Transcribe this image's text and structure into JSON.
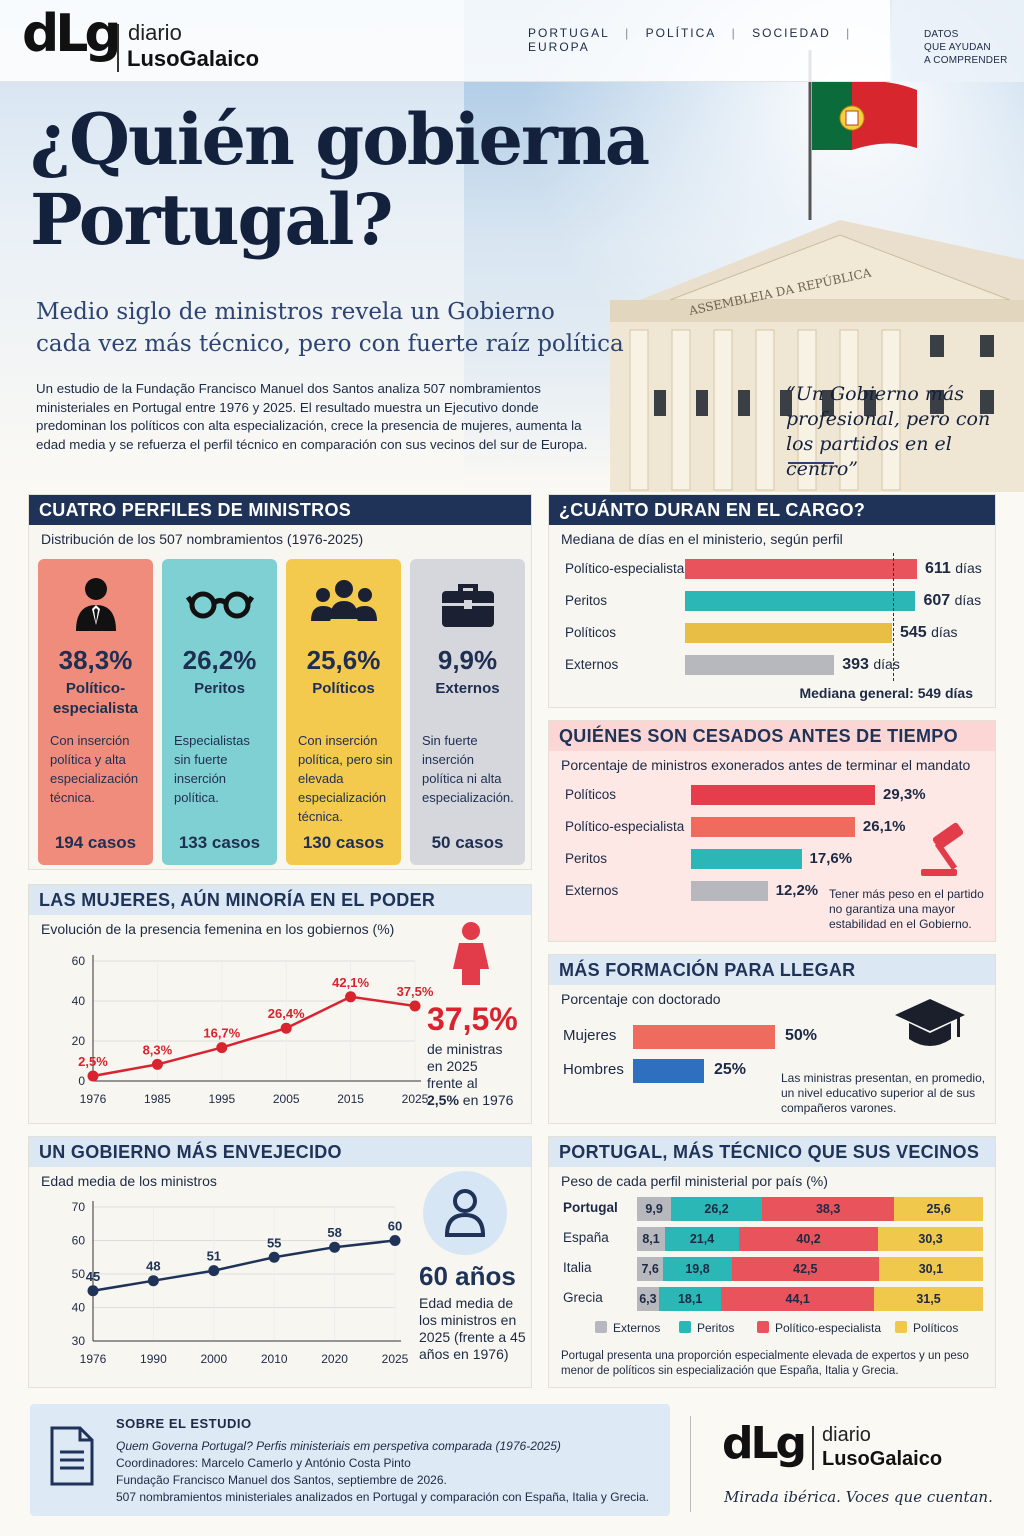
{
  "header": {
    "logo_mark": "dLg",
    "logo_top": "diario",
    "logo_bottom": "LusoGalaico",
    "nav": [
      "PORTUGAL",
      "POLÍTICA",
      "SOCIEDAD",
      "EUROPA"
    ],
    "nav_sep": "|",
    "tagline_lines": [
      "DATOS",
      "QUE AYUDAN",
      "A COMPRENDER"
    ]
  },
  "hero": {
    "title_line1": "¿Quién gobierna",
    "title_line2": "Portugal?",
    "subtitle_line1": "Medio siglo de ministros revela un Gobierno",
    "subtitle_line2": "cada vez más técnico, pero con fuerte raíz política",
    "intro": "Un estudio de la Fundação Francisco Manuel dos Santos analiza 507 nombramientos ministeriales en Portugal entre 1976 y 2025. El resultado muestra un Ejecutivo donde predominan los políticos con alta especialización, crece la presencia de mujeres, aumenta la edad media y se refuerza el perfil técnico en comparación con sus vecinos del sur de Europa.",
    "quote": "“Un Gobierno más profesional, pero con los partidos en el centro”",
    "building_inscription": "ASSEMBLEIA DA REPÚBLICA",
    "flag_colors": {
      "green": "#0b6b3a",
      "red": "#d7262e"
    }
  },
  "profiles": {
    "heading": "CUATRO PERFILES DE MINISTROS",
    "subheading": "Distribución de los 507 nombramientos (1976-2025)",
    "cards": [
      {
        "pct": "38,3%",
        "name": "Político-especialista",
        "desc": "Con inserción política y alta especialización técnica.",
        "cases": "194 casos",
        "icon": "person-tie-icon",
        "color": "#f08c7c"
      },
      {
        "pct": "26,2%",
        "name": "Peritos",
        "desc": "Especialistas sin fuerte inserción política.",
        "cases": "133 casos",
        "icon": "glasses-icon",
        "color": "#7fd0d3"
      },
      {
        "pct": "25,6%",
        "name": "Políticos",
        "desc": "Con inserción política, pero sin elevada especialización técnica.",
        "cases": "130 casos",
        "icon": "group-icon",
        "color": "#f3c94e"
      },
      {
        "pct": "9,9%",
        "name": "Externos",
        "desc": "Sin fuerte inserción política ni alta especialización.",
        "cases": "50 casos",
        "icon": "briefcase-icon",
        "color": "#d6d7dc"
      }
    ]
  },
  "tenure": {
    "heading": "¿CUÁNTO DURAN EN EL CARGO?",
    "subheading": "Mediana de días en el ministerio, según perfil",
    "unit": "días",
    "median_label": "Mediana general: 549 días"
  },
  "dismissed": {
    "heading": "QUIÉNES SON CESADOS ANTES DE TIEMPO",
    "subheading": "Porcentaje de ministros exonerados antes de terminar el mandato",
    "note": "Tener más peso en el partido no garantiza una mayor estabilidad en el Gobierno."
  },
  "women": {
    "heading": "LAS MUJERES, AÚN MINORÍA EN EL PODER",
    "subheading": "Evolución de la presencia femenina en los gobiernos (%)",
    "big": "37,5%",
    "text1": "de ministras",
    "text2": "en 2025",
    "text3": "frente al",
    "text4_bold": "2,5%",
    "text4": " en 1976"
  },
  "education": {
    "heading": "MÁS FORMACIÓN PARA LLEGAR",
    "subheading": "Porcentaje con doctorado",
    "note": "Las ministras presentan, en promedio, un nivel educativo superior al de sus compañeros varones."
  },
  "age": {
    "heading": "UN GOBIERNO MÁS ENVEJECIDO",
    "subheading": "Edad media de los ministros",
    "big": "60 años",
    "text": "Edad media de los ministros en 2025 (frente a 45 años en 1976)"
  },
  "neighbors": {
    "heading": "PORTUGAL, MÁS TÉCNICO QUE SUS VECINOS",
    "subheading": "Peso de cada perfil ministerial por país (%)",
    "note": "Portugal presenta una proporción especialmente elevada de expertos y un peso menor de políticos sin especialización que España, Italia y Grecia."
  },
  "footer": {
    "heading": "SOBRE EL ESTUDIO",
    "line1": "Quem Governa Portugal? Perfis ministeriais em perspetiva comparada (1976-2025)",
    "line2": "Coordinadores: Marcelo Camerlo y António Costa Pinto",
    "line3": "Fundação Francisco Manuel dos Santos, septiembre de 2026.",
    "line4": "507 nombramientos ministeriales analizados en Portugal y comparación con España, Italia y Grecia.",
    "motto": "Mirada ibérica. Voces que cuentan."
  },
  "chart_data": [
    {
      "type": "bar",
      "title": "¿CUÁNTO DURAN EN EL CARGO?",
      "subtitle": "Mediana de días en el ministerio, según perfil",
      "categories": [
        "Político-especialista",
        "Peritos",
        "Políticos",
        "Externos"
      ],
      "values": [
        611,
        607,
        545,
        393
      ],
      "colors": [
        "#e9545c",
        "#2bb7b5",
        "#e8be45",
        "#b7b8bd"
      ],
      "reference_line": 549,
      "orientation": "horizontal"
    },
    {
      "type": "bar",
      "title": "QUIÉNES SON CESADOS ANTES DE TIEMPO",
      "subtitle": "Porcentaje de ministros exonerados antes de terminar el mandato",
      "categories": [
        "Políticos",
        "Político-especialista",
        "Peritos",
        "Externos"
      ],
      "values": [
        29.3,
        26.1,
        17.6,
        12.2
      ],
      "labels": [
        "29,3%",
        "26,1%",
        "17,6%",
        "12,2%"
      ],
      "colors": [
        "#e63d4c",
        "#ee6b5e",
        "#2bb7b5",
        "#b7b8bd"
      ],
      "orientation": "horizontal"
    },
    {
      "type": "line",
      "title": "LAS MUJERES, AÚN MINORÍA EN EL PODER",
      "subtitle": "Evolución de la presencia femenina en los gobiernos (%)",
      "x": [
        1976,
        1985,
        1995,
        2005,
        2015,
        2025
      ],
      "values": [
        2.5,
        8.3,
        16.7,
        26.4,
        42.1,
        37.5
      ],
      "labels": [
        "2,5%",
        "8,3%",
        "16,7%",
        "26,4%",
        "42,1%",
        "37,5%"
      ],
      "ylim": [
        0,
        60
      ],
      "yticks": [
        0,
        20,
        40,
        60
      ],
      "color": "#d9232f",
      "grid": true
    },
    {
      "type": "bar",
      "title": "MÁS FORMACIÓN PARA LLEGAR",
      "subtitle": "Porcentaje con doctorado",
      "categories": [
        "Mujeres",
        "Hombres"
      ],
      "values": [
        50,
        25
      ],
      "labels": [
        "50%",
        "25%"
      ],
      "colors": [
        "#ee6b5e",
        "#2f6fbf"
      ],
      "orientation": "horizontal"
    },
    {
      "type": "line",
      "title": "UN GOBIERNO MÁS ENVEJECIDO",
      "subtitle": "Edad media de los ministros",
      "x": [
        1976,
        1990,
        2000,
        2010,
        2020,
        2025
      ],
      "values": [
        45,
        48,
        51,
        55,
        58,
        60
      ],
      "ylim": [
        30,
        70
      ],
      "yticks": [
        30,
        40,
        50,
        60,
        70
      ],
      "color": "#1f3358",
      "grid": true
    },
    {
      "type": "bar",
      "stacked": true,
      "title": "PORTUGAL, MÁS TÉCNICO QUE SUS VECINOS",
      "subtitle": "Peso de cada perfil ministerial por país (%)",
      "categories": [
        "Portugal",
        "España",
        "Italia",
        "Grecia"
      ],
      "series": [
        {
          "name": "Externos",
          "values": [
            9.9,
            8.1,
            7.6,
            6.3
          ],
          "labels": [
            "9,9",
            "8,1",
            "7,6",
            "6,3"
          ],
          "color": "#b7b8bd"
        },
        {
          "name": "Peritos",
          "values": [
            26.2,
            21.4,
            19.8,
            18.1
          ],
          "labels": [
            "26,2",
            "21,4",
            "19,8",
            "18,1"
          ],
          "color": "#2bb7b5"
        },
        {
          "name": "Político-especialista",
          "values": [
            38.3,
            40.2,
            42.5,
            44.1
          ],
          "labels": [
            "38,3",
            "40,2",
            "42,5",
            "44,1"
          ],
          "color": "#e9545c"
        },
        {
          "name": "Políticos",
          "values": [
            25.6,
            30.3,
            30.1,
            31.5
          ],
          "labels": [
            "25,6",
            "30,3",
            "30,1",
            "31,5"
          ],
          "color": "#f0c84c"
        }
      ],
      "orientation": "horizontal",
      "legend": "bottom"
    }
  ]
}
